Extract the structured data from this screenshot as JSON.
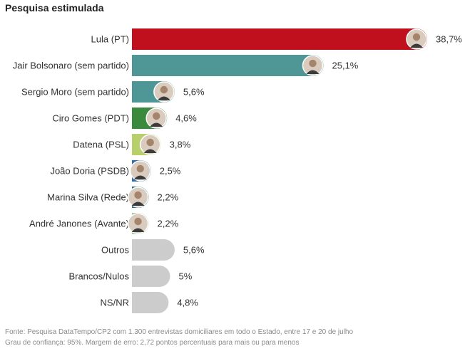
{
  "chart_data": {
    "type": "bar",
    "orientation": "horizontal",
    "title": "Pesquisa estimulada",
    "categories": [
      "Lula (PT)",
      "Jair Bolsonaro (sem partido)",
      "Sergio Moro (sem partido)",
      "Ciro Gomes (PDT)",
      "Datena (PSL)",
      "João Doria (PSDB)",
      "Marina Silva (Rede)",
      "André Janones (Avante)",
      "Outros",
      "Brancos/Nulos",
      "NS/NR"
    ],
    "values": [
      38.7,
      25.1,
      5.6,
      4.6,
      3.8,
      2.5,
      2.2,
      2.2,
      5.6,
      5,
      4.8
    ],
    "value_labels": [
      "38,7%",
      "25,1%",
      "5,6%",
      "4,6%",
      "3,8%",
      "2,5%",
      "2,2%",
      "2,2%",
      "5,6%",
      "5%",
      "4,8%"
    ],
    "colors": [
      "#c0101e",
      "#4e9796",
      "#4e9796",
      "#3a8a3e",
      "#b9cf6c",
      "#2f6fb4",
      "#1f6f88",
      "#a6c9a0",
      "#cccccc",
      "#cccccc",
      "#cccccc"
    ],
    "has_portrait": [
      true,
      true,
      true,
      true,
      true,
      true,
      true,
      true,
      false,
      false,
      false
    ],
    "xlim": [
      0,
      38.7
    ],
    "grid": false,
    "legend": "none"
  },
  "footnote": {
    "source": "Fonte: Pesquisa DataTempo/CP2 com 1.300 entrevistas domiciliares em todo o Estado, entre 17 e 20 de julho",
    "confidence": "Grau de confiança: 95%. Margem de erro: 2,72 pontos percentuais para mais ou para menos"
  }
}
